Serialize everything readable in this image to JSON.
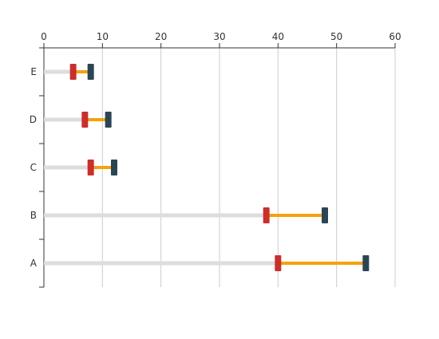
{
  "chart_data": {
    "type": "bar",
    "title": "",
    "xlabel": "",
    "ylabel": "",
    "xlim": [
      0,
      60
    ],
    "x_ticks": [
      0,
      10,
      20,
      30,
      40,
      50,
      60
    ],
    "x_axis_position": "top",
    "grid": true,
    "categories": [
      "A",
      "B",
      "C",
      "D",
      "E"
    ],
    "series": [
      {
        "start": 40,
        "end": 55
      },
      {
        "start": 38,
        "end": 48
      },
      {
        "start": 8,
        "end": 12
      },
      {
        "start": 7,
        "end": 11
      },
      {
        "start": 5,
        "end": 8
      }
    ],
    "colors": {
      "baseline": "#dddddd",
      "range": "#f5a10f",
      "start_marker": "#c8302c",
      "end_marker": "#2c4552",
      "grid": "#cccccc",
      "axis": "#333333"
    }
  }
}
